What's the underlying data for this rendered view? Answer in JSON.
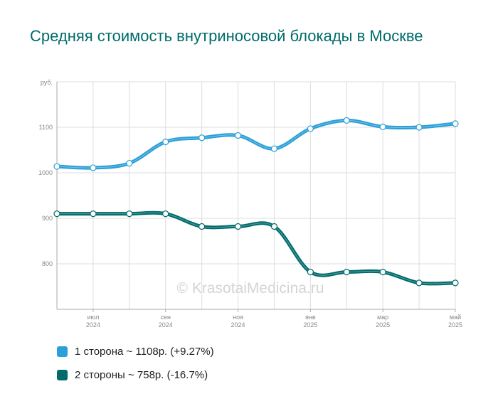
{
  "title": "Средняя стоимость внутриносовой блокады в Москве",
  "watermark": "© KrasotaiMedicina.ru",
  "legend": [
    {
      "label": "1 сторона ~ 1108р. (+9.27%)",
      "color": "#2a9fd8"
    },
    {
      "label": "2 стороны ~ 758р. (-16.7%)",
      "color": "#006b6b"
    }
  ],
  "chart_data": {
    "type": "line",
    "title": "Средняя стоимость внутриносовой блокады в Москве",
    "ylabel": "руб.",
    "ylim": [
      700,
      1200
    ],
    "yticks": [
      800,
      900,
      1000,
      1100
    ],
    "x": [
      "2024-06",
      "2024-07",
      "2024-08",
      "2024-09",
      "2024-10",
      "2024-11",
      "2024-12",
      "2025-01",
      "2025-02",
      "2025-03",
      "2025-04",
      "2025-05"
    ],
    "xtick_labels": [
      {
        "month": "июл",
        "year": "2024",
        "index": 1
      },
      {
        "month": "сен",
        "year": "2024",
        "index": 3
      },
      {
        "month": "ноя",
        "year": "2024",
        "index": 5
      },
      {
        "month": "янв",
        "year": "2025",
        "index": 7
      },
      {
        "month": "мар",
        "year": "2025",
        "index": 9
      },
      {
        "month": "май",
        "year": "2025",
        "index": 11
      }
    ],
    "grid": true,
    "series": [
      {
        "name": "1 сторона",
        "color": "#2a9fd8",
        "values": [
          1014,
          1011,
          1021,
          1068,
          1077,
          1082,
          1053,
          1097,
          1115,
          1101,
          1100,
          1108
        ]
      },
      {
        "name": "2 стороны",
        "color": "#006b6b",
        "values": [
          910,
          910,
          910,
          910,
          882,
          882,
          882,
          782,
          782,
          782,
          758,
          758
        ]
      }
    ]
  }
}
